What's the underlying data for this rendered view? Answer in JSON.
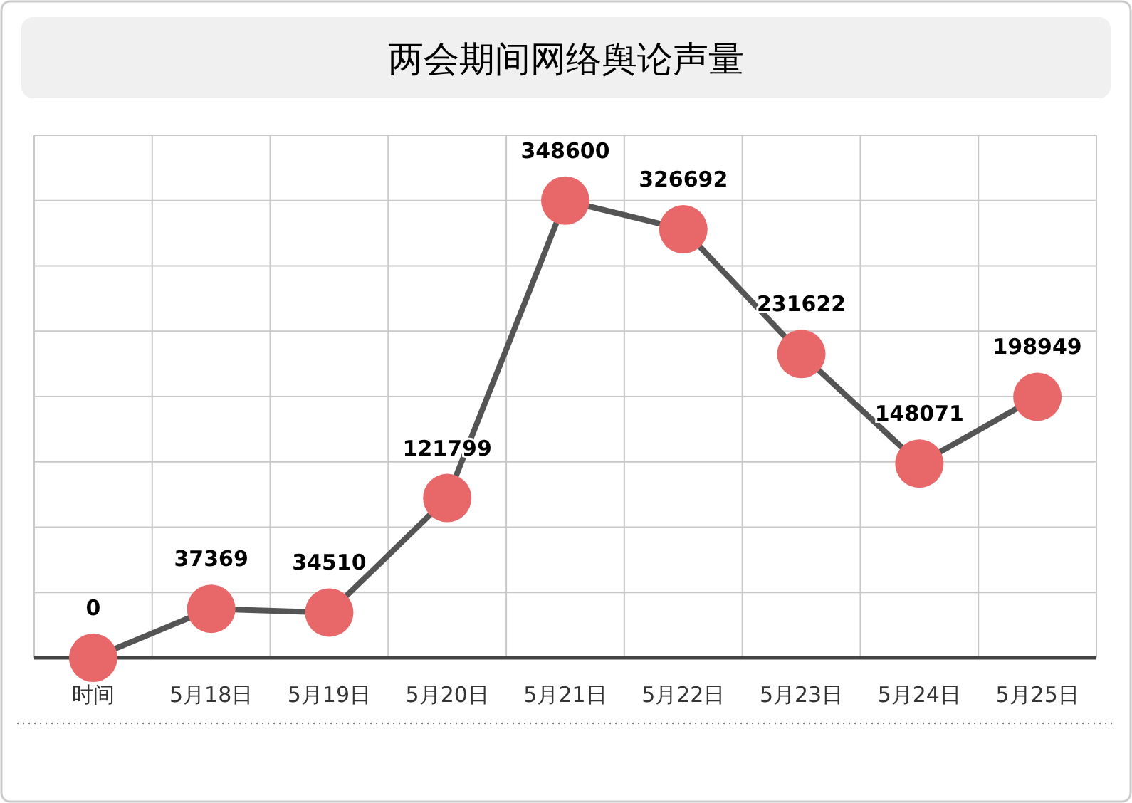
{
  "chart_data": {
    "type": "line",
    "title": "两会期间网络舆论声量",
    "categories": [
      "时间",
      "5月18日",
      "5月19日",
      "5月20日",
      "5月21日",
      "5月22日",
      "5月23日",
      "5月24日",
      "5月25日"
    ],
    "series": [
      {
        "color": "#e8686a",
        "values": [
          0,
          37369,
          34510,
          121799,
          348600,
          326692,
          231622,
          148071,
          198949
        ]
      }
    ],
    "data_labels": true,
    "grid": true,
    "marker": "circle",
    "line_style": "solid"
  }
}
